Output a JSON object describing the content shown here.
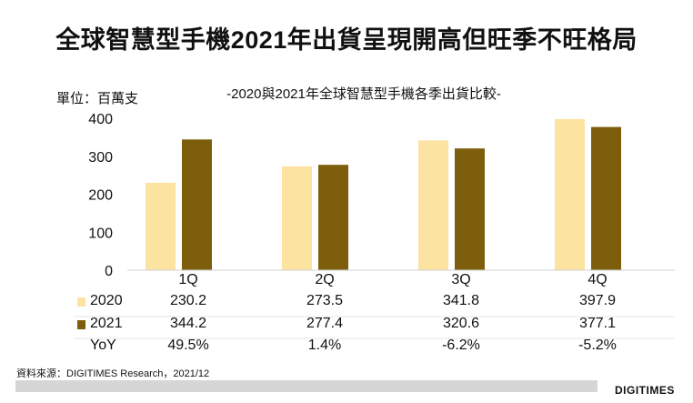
{
  "title": "全球智慧型手機2021年出貨呈現開高但旺季不旺格局",
  "source": "資料來源：DIGITIMES Research，2021/12",
  "logo": "DIGITIMES",
  "chart_data": {
    "type": "bar",
    "title": "-2020與2021年全球智慧型手機各季出貨比較-",
    "ylabel": "單位：百萬支",
    "categories": [
      "1Q",
      "2Q",
      "3Q",
      "4Q"
    ],
    "yticks": [
      "0",
      "100",
      "200",
      "300",
      "400"
    ],
    "ylim": [
      0,
      400
    ],
    "grid": false,
    "series": [
      {
        "name": "2020",
        "values": [
          230.2,
          273.5,
          341.8,
          397.9
        ],
        "labels": [
          "230.2",
          "273.5",
          "341.8",
          "397.9"
        ],
        "color": "#FCE3A2"
      },
      {
        "name": "2021",
        "values": [
          344.2,
          277.4,
          320.6,
          377.1
        ],
        "labels": [
          "344.2",
          "277.4",
          "320.6",
          "377.1"
        ],
        "color": "#7D5E0C"
      }
    ],
    "yoy": {
      "name": "YoY",
      "values": [
        "49.5%",
        "1.4%",
        "-6.2%",
        "-5.2%"
      ]
    }
  }
}
